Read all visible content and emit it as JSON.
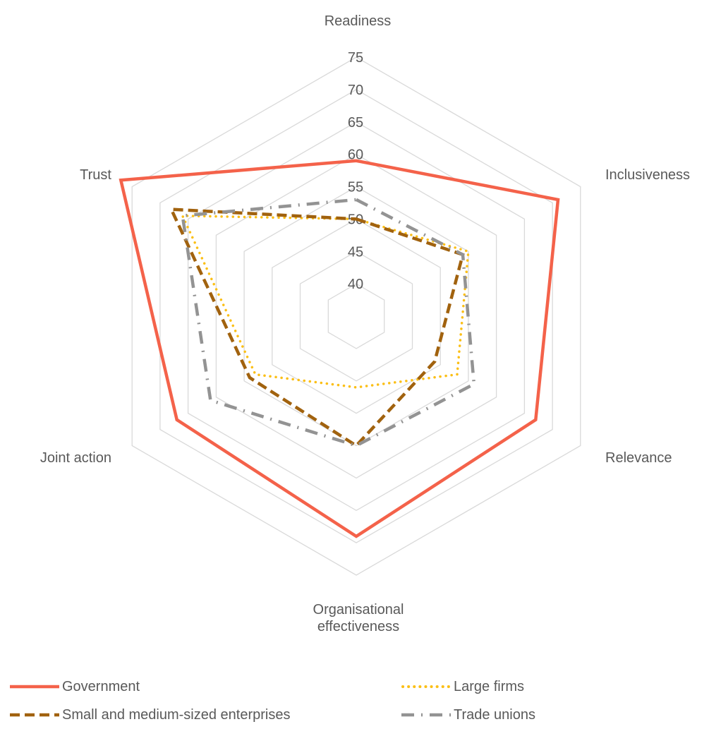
{
  "chart_data": {
    "type": "radar",
    "axes": [
      "Readiness",
      "Inclusiveness",
      "Relevance",
      "Organisational effectiveness",
      "Joint action",
      "Trust"
    ],
    "axis_labels": [
      [
        "Readiness"
      ],
      [
        "Inclusiveness"
      ],
      [
        "Relevance"
      ],
      [
        "Organisational",
        "effectiveness"
      ],
      [
        "Joint action"
      ],
      [
        "Trust"
      ]
    ],
    "ticks": [
      40,
      45,
      50,
      55,
      60,
      65,
      70,
      75
    ],
    "range": [
      35,
      75
    ],
    "series": [
      {
        "name": "Government",
        "values": [
          59,
          71,
          67,
          69,
          67,
          77
        ],
        "color": "#F4624A",
        "style": "solid"
      },
      {
        "name": "Large firms",
        "values": [
          50,
          55,
          53,
          46,
          53,
          66
        ],
        "color": "#FBBF16",
        "style": "dotted"
      },
      {
        "name": "Small and medium-sized enterprises",
        "values": [
          50,
          54,
          49,
          55,
          54,
          68
        ],
        "color": "#A1620E",
        "style": "dashed"
      },
      {
        "name": "Trade unions",
        "values": [
          53,
          54,
          56,
          55,
          61,
          66
        ],
        "color": "#939393",
        "style": "dashdot"
      }
    ]
  }
}
